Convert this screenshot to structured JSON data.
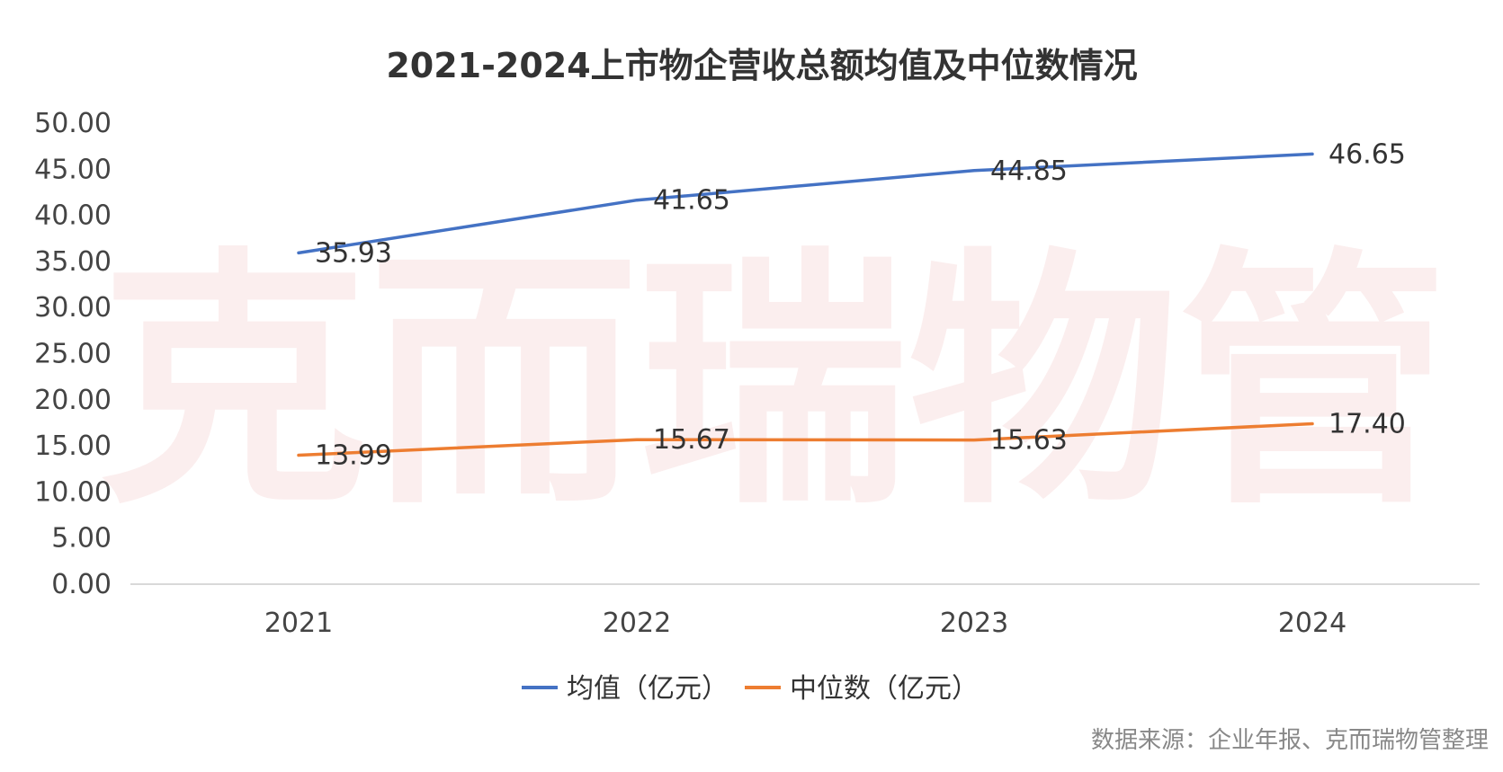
{
  "watermark": "克而瑞物管",
  "source": "数据来源：企业年报、克而瑞物管整理",
  "chart_data": {
    "type": "line",
    "title": "2021-2024上市物企营收总额均值及中位数情况",
    "xlabel": "",
    "ylabel": "",
    "categories": [
      "2021",
      "2022",
      "2023",
      "2024"
    ],
    "ylim": [
      0,
      50
    ],
    "yticks": [
      "0.00",
      "5.00",
      "10.00",
      "15.00",
      "20.00",
      "25.00",
      "30.00",
      "35.00",
      "40.00",
      "45.00",
      "50.00"
    ],
    "grid": false,
    "legend_position": "bottom",
    "series": [
      {
        "name": "均值（亿元）",
        "color": "#4472C4",
        "values": [
          35.93,
          41.65,
          44.85,
          46.65
        ],
        "labels": [
          "35.93",
          "41.65",
          "44.85",
          "46.65"
        ]
      },
      {
        "name": "中位数（亿元）",
        "color": "#ED7D31",
        "values": [
          13.99,
          15.67,
          15.63,
          17.4
        ],
        "labels": [
          "13.99",
          "15.67",
          "15.63",
          "17.40"
        ]
      }
    ]
  }
}
